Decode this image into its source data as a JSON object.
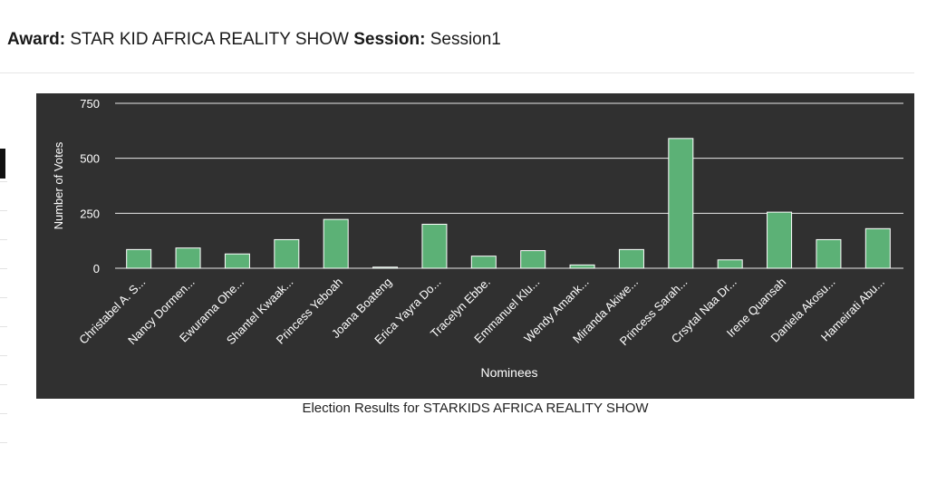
{
  "header": {
    "award_label": "Award:",
    "award_value": "STAR KID AFRICA REALITY SHOW",
    "session_label": "Session:",
    "session_value": "Session1"
  },
  "caption": "Election Results for STARKIDS AFRICA REALITY SHOW",
  "colors": {
    "background": "#303030",
    "bar": "#5cb176",
    "gridline": "#e8e8e8",
    "text": "#ffffff"
  },
  "chart_data": {
    "type": "bar",
    "xlabel": "Nominees",
    "ylabel": "Number of Votes",
    "ylim": [
      0,
      750
    ],
    "yticks": [
      0,
      250,
      500,
      750
    ],
    "grid": true,
    "categories": [
      "Christabel A. S...",
      "Nancy Dormen...",
      "Ewurama Ohe...",
      "Shantel Kwaak...",
      "Princess Yeboah",
      "Joana Boateng",
      "Erica Yayra Do...",
      "Tracelyn Ebbe.",
      "Emmanuel Klu...",
      "Wendy Amank...",
      "Miranda Akiwe...",
      "Princess Sarah...",
      "Crsytal Naa Dr...",
      "Irene Quansah",
      "Daniela Akosu...",
      "Hameirati Abu..."
    ],
    "values": [
      85,
      92,
      65,
      130,
      222,
      5,
      200,
      55,
      80,
      15,
      85,
      590,
      38,
      255,
      130,
      180
    ]
  }
}
